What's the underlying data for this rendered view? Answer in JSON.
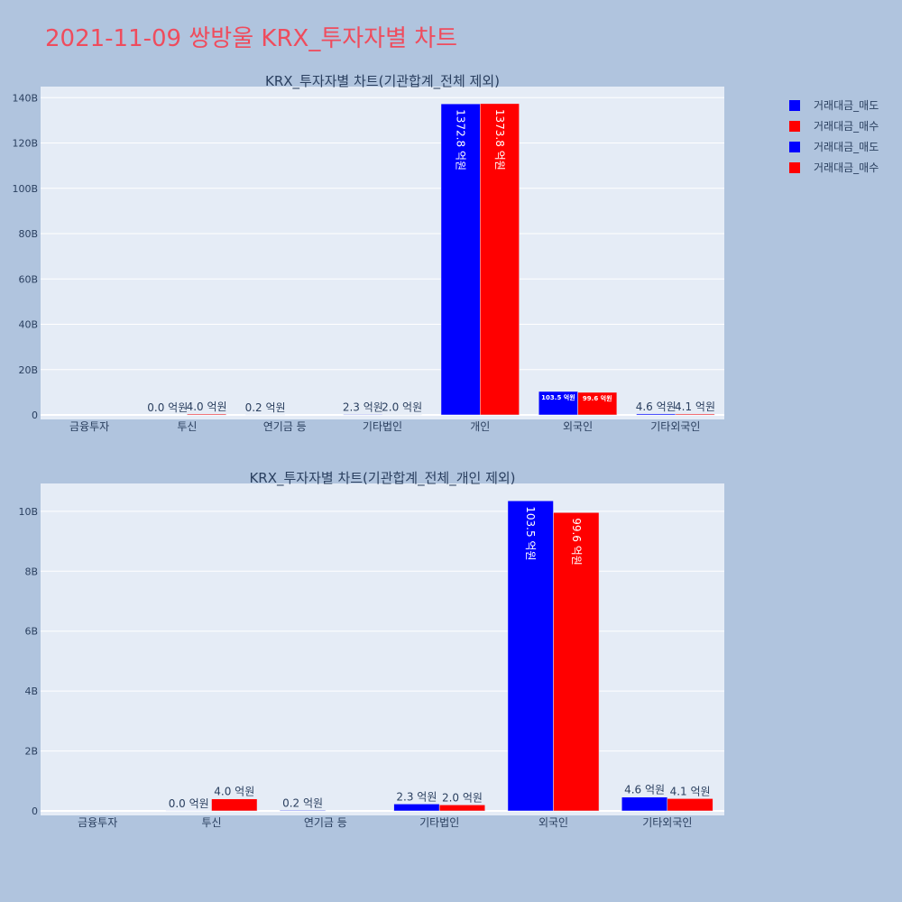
{
  "page_title": "2021-11-09 쌍방울 KRX_투자자별 차트",
  "legend": [
    {
      "label": "거래대금_매도",
      "color": "#0000ff"
    },
    {
      "label": "거래대금_매수",
      "color": "#ff0000"
    },
    {
      "label": "거래대금_매도",
      "color": "#0000ff"
    },
    {
      "label": "거래대금_매수",
      "color": "#ff0000"
    }
  ],
  "chart_data": [
    {
      "type": "bar",
      "title": "KRX_투자자별 차트(기관합계_전체 제외)",
      "categories": [
        "금융투자",
        "투신",
        "연기금 등",
        "기타법인",
        "개인",
        "외국인",
        "기타외국인"
      ],
      "series": [
        {
          "name": "거래대금_매도",
          "color": "#0000ff",
          "values": [
            0,
            0,
            0.02,
            0.23,
            137.28,
            10.35,
            0.46
          ],
          "labels": [
            "",
            "0.0 억원",
            "0.2 억원",
            "2.3 억원",
            "1372.8 억원",
            "103.5 억원",
            "4.6 억원"
          ]
        },
        {
          "name": "거래대금_매수",
          "color": "#ff0000",
          "values": [
            0,
            0.4,
            0,
            0.2,
            137.38,
            9.96,
            0.41
          ],
          "labels": [
            "",
            "4.0 억원",
            "",
            "2.0 억원",
            "1373.8 억원",
            "99.6 억원",
            "4.1 억원"
          ]
        }
      ],
      "yticks": [
        0,
        20,
        40,
        60,
        80,
        100,
        120,
        140
      ],
      "ytick_labels": [
        "0",
        "20B",
        "40B",
        "60B",
        "80B",
        "100B",
        "120B",
        "140B"
      ],
      "ylim": [
        0,
        144.5
      ],
      "grid": true
    },
    {
      "type": "bar",
      "title": "KRX_투자자별 차트(기관합계_전체_개인 제외)",
      "categories": [
        "금융투자",
        "투신",
        "연기금 등",
        "기타법인",
        "외국인",
        "기타외국인"
      ],
      "series": [
        {
          "name": "거래대금_매도",
          "color": "#0000ff",
          "values": [
            0,
            0.003,
            0.02,
            0.23,
            10.35,
            0.46
          ],
          "labels": [
            "",
            "0.0 억원",
            "0.2 억원",
            "2.3 억원",
            "103.5 억원",
            "4.6 억원"
          ]
        },
        {
          "name": "거래대금_매수",
          "color": "#ff0000",
          "values": [
            0,
            0.4,
            0,
            0.2,
            9.96,
            0.41
          ],
          "labels": [
            "",
            "4.0 억원",
            "",
            "2.0 억원",
            "99.6 억원",
            "4.1 억원"
          ]
        }
      ],
      "yticks": [
        0,
        2,
        4,
        6,
        8,
        10
      ],
      "ytick_labels": [
        "0",
        "2B",
        "4B",
        "6B",
        "8B",
        "10B"
      ],
      "ylim": [
        0,
        10.9
      ],
      "grid": true
    }
  ]
}
